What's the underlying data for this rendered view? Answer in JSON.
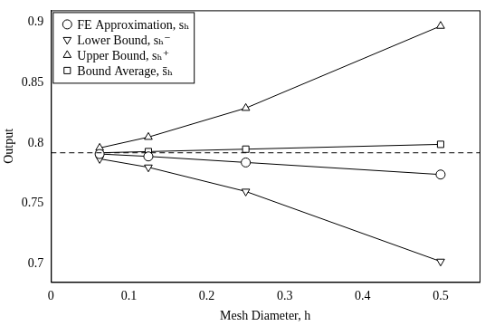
{
  "chart_data": {
    "type": "line",
    "x_label": "Mesh Diameter, h",
    "y_label": "Output",
    "xlim": [
      0,
      0.55
    ],
    "xticks": [
      0,
      0.1,
      0.2,
      0.3,
      0.4,
      0.5
    ],
    "ylim": [
      0.685,
      0.91
    ],
    "yticks": [
      0.7,
      0.75,
      0.8,
      0.85,
      0.9
    ],
    "grid": false,
    "legend": "upper left",
    "x": [
      0.0625,
      0.125,
      0.25,
      0.5
    ],
    "series": [
      {
        "name": "FE Approximation, sₕ",
        "color": "#000000",
        "marker": "circle",
        "line_style": "solid",
        "values": [
          0.791,
          0.789,
          0.784,
          0.774
        ]
      },
      {
        "name": "Lower Bound, sₕ⁻",
        "color": "#000000",
        "marker": "triangle_down",
        "line_style": "solid",
        "values": [
          0.787,
          0.78,
          0.76,
          0.702
        ]
      },
      {
        "name": "Upper Bound, sₕ⁺",
        "color": "#000000",
        "marker": "triangle",
        "line_style": "solid",
        "values": [
          0.796,
          0.805,
          0.829,
          0.897
        ]
      },
      {
        "name": "Bound Average, s̄ₕ",
        "color": "#000000",
        "marker": "square",
        "line_style": "solid",
        "values": [
          0.792,
          0.793,
          0.795,
          0.799
        ]
      }
    ],
    "hlines": [
      {
        "y": 0.792,
        "color": "#000000",
        "line_style": "dashed"
      }
    ]
  }
}
